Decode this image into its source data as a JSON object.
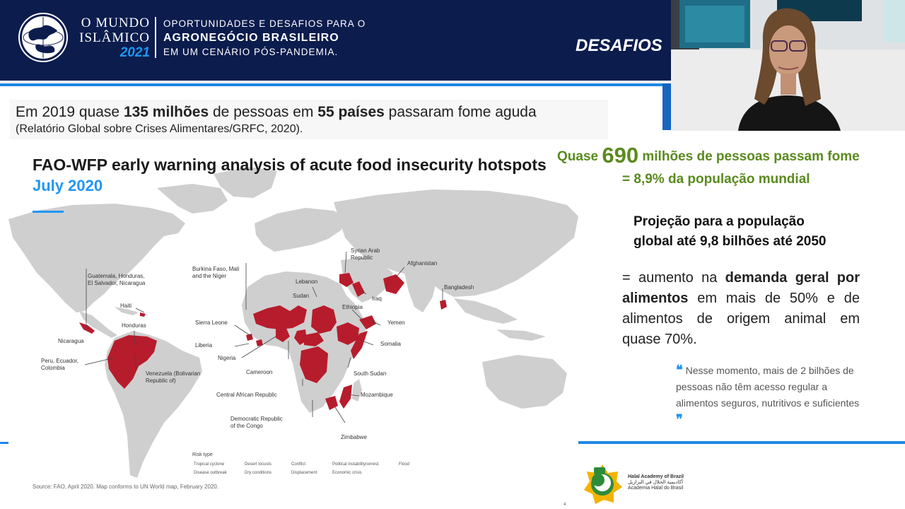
{
  "header": {
    "logo_line1": "O MUNDO",
    "logo_line2": "ISLÂMICO",
    "logo_year": "2021",
    "tag_line1": "OPORTUNIDADES E DESAFIOS PARA O",
    "tag_line2": "AGRONEGÓCIO BRASILEIRO",
    "tag_line3": "EM UM CENÁRIO PÓS-PANDEMIA.",
    "section_title": "DESAFIOS"
  },
  "intro": {
    "main_pre": "Em 2019 quase ",
    "main_b1": "135 milhões",
    "main_mid": " de pessoas em ",
    "main_b2": "55 países",
    "main_post": " passaram fome aguda",
    "sub": "(Relatório Global sobre Crises Alimentares/GRFC, 2020)."
  },
  "map": {
    "title": "FAO-WFP early warning analysis of acute food insecurity hotspots",
    "subtitle": "July 2020",
    "labels": {
      "guatemala": "Guatemala, Honduras,\nEl Salvador, Nicaragua",
      "haiti": "Haiti",
      "honduras": "Honduras",
      "nicaragua": "Nicaragua",
      "peru": "Peru, Ecuador,\nColombia",
      "venezuela": "Venezuela (Bolivarian\nRepublic of)",
      "burkina": "Burkina Faso, Mali\nand the Niger",
      "sierra": "Sierra Leone",
      "liberia": "Liberia",
      "nigeria": "Nigeria",
      "cameroon": "Cameroon",
      "car": "Central African Republic",
      "drc": "Democratic Republic\nof the Congo",
      "lebanon": "Lebanon",
      "sudan": "Sudan",
      "syria": "Syrian Arab\nRepublic",
      "afghanistan": "Afghanistan",
      "iraq": "Iraq",
      "ethiopia": "Ethiopia",
      "yemen": "Yemen",
      "somalia": "Somalia",
      "south_sudan": "South Sudan",
      "mozambique": "Mozambique",
      "zimbabwe": "Zimbabwe",
      "bangladesh": "Bangladesh"
    },
    "risk_title": "Risk type",
    "risk_items": [
      "Tropical cyclone",
      "Desert locusts",
      "Conflict",
      "Political instability/unrest",
      "Flood",
      "Disease outbreak",
      "Dry conditions",
      "Displacement",
      "Economic crisis"
    ],
    "source": "Source: FAO, April 2020. Map conforms to UN World map, February 2020."
  },
  "stats": {
    "quase": "Quase ",
    "big": "690",
    "rest": " milhões de pessoas passam fome",
    "line2": "=  8,9% da população mundial"
  },
  "projection": {
    "line1": "Projeção para a população",
    "line2": "global até 9,8 bilhões até 2050"
  },
  "increase": {
    "pre": "= aumento na ",
    "bold": "demanda geral por alimentos",
    "post": " em mais de 50% e de alimentos de origem animal em quase 70%."
  },
  "quote": {
    "text": "Nesse momento, mais de 2 bilhões de pessoas não têm acesso regular a alimentos seguros, nutritivos e suficientes"
  },
  "halal": {
    "name": "Halal Academy of Brazil",
    "arabic": "أكاديمية الحلال في البرازيل",
    "pt": "Academia Halal do Brasil"
  },
  "page_number": "4",
  "colors": {
    "header_bg": "#0b1c4d",
    "accent_blue": "#2196f3",
    "green": "#5a8a1e",
    "hotspot_red": "#b71c2c"
  }
}
